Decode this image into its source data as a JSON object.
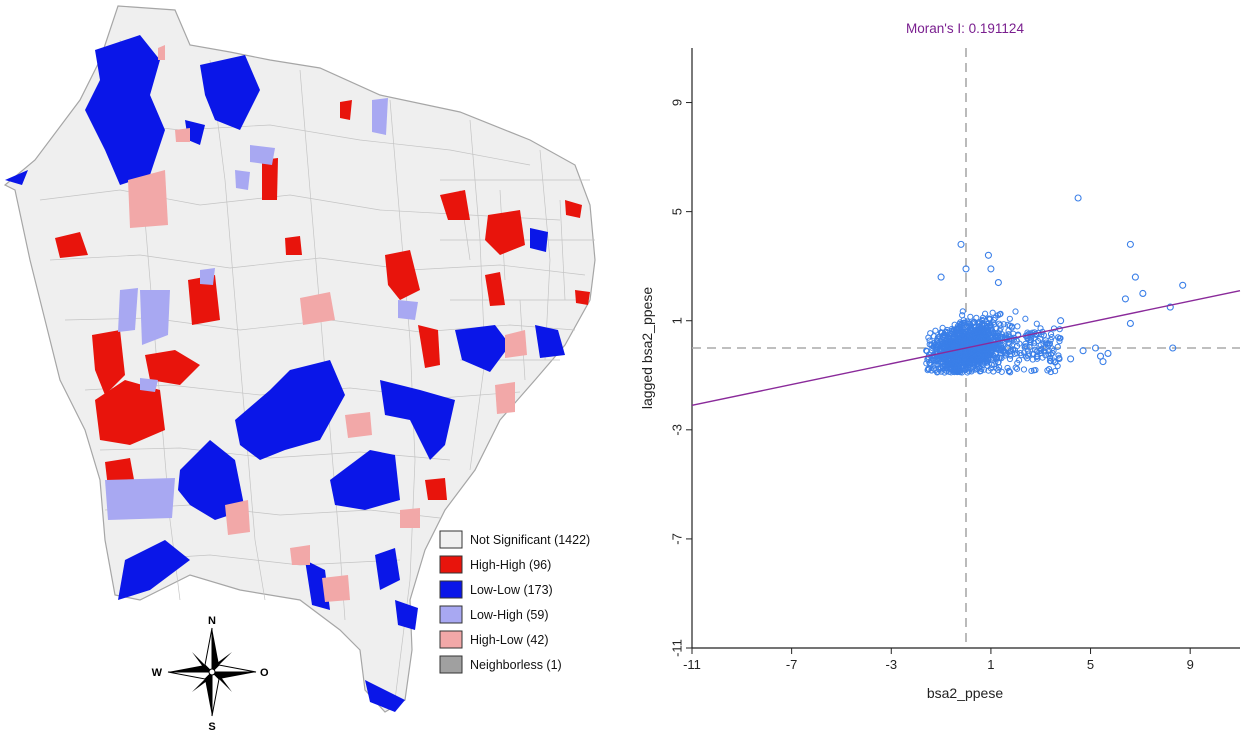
{
  "map": {
    "legend": [
      {
        "label": "Not Significant (1422)",
        "color": "#f0f0f0"
      },
      {
        "label": "High-High (96)",
        "color": "#e8140c"
      },
      {
        "label": "Low-Low (173)",
        "color": "#0a16e8"
      },
      {
        "label": "Low-High (59)",
        "color": "#a8a8f2"
      },
      {
        "label": "High-Low (42)",
        "color": "#f2a8a8"
      },
      {
        "label": "Neighborless (1)",
        "color": "#a0a0a0"
      }
    ],
    "compass": {
      "n": "N",
      "s": "S",
      "w": "W",
      "e": "O"
    }
  },
  "chart_data": {
    "type": "scatter",
    "title": "Moran's I: 0.191124",
    "xlabel": "bsa2_ppese",
    "ylabel": "lagged bsa2_ppese",
    "xlim": [
      -11,
      11
    ],
    "ylim": [
      -11,
      11
    ],
    "x_ticks": [
      -11,
      -7,
      -3,
      1,
      5,
      9
    ],
    "y_ticks": [
      -11,
      -7,
      -3,
      1,
      5,
      9
    ],
    "moran_i": 0.191124,
    "reference_lines": {
      "x": 0,
      "y": 0
    },
    "colors": {
      "points": "#3a7fe8",
      "regression": "#8a2a9a",
      "title": "#7a1f8f"
    },
    "outliers": [
      {
        "x": 4.5,
        "y": 5.5
      },
      {
        "x": -0.2,
        "y": 3.8
      },
      {
        "x": 0.9,
        "y": 3.4
      },
      {
        "x": 6.6,
        "y": 3.8
      },
      {
        "x": 6.8,
        "y": 2.6
      },
      {
        "x": 7.1,
        "y": 2.0
      },
      {
        "x": 6.4,
        "y": 1.8
      },
      {
        "x": 6.6,
        "y": 0.9
      },
      {
        "x": 8.2,
        "y": 1.5
      },
      {
        "x": 8.7,
        "y": 2.3
      },
      {
        "x": 8.3,
        "y": 0.0
      },
      {
        "x": 4.2,
        "y": -0.4
      },
      {
        "x": 4.7,
        "y": -0.1
      },
      {
        "x": 5.2,
        "y": 0.0
      },
      {
        "x": 5.4,
        "y": -0.3
      },
      {
        "x": 5.7,
        "y": -0.2
      },
      {
        "x": 5.5,
        "y": -0.5
      },
      {
        "x": 3.8,
        "y": 1.0
      },
      {
        "x": 2.8,
        "y": 0.5
      },
      {
        "x": 3.3,
        "y": 0.1
      },
      {
        "x": 1.3,
        "y": 2.4
      },
      {
        "x": 1.0,
        "y": 2.9
      },
      {
        "x": 0.0,
        "y": 2.9
      },
      {
        "x": -1.0,
        "y": 2.6
      }
    ]
  }
}
